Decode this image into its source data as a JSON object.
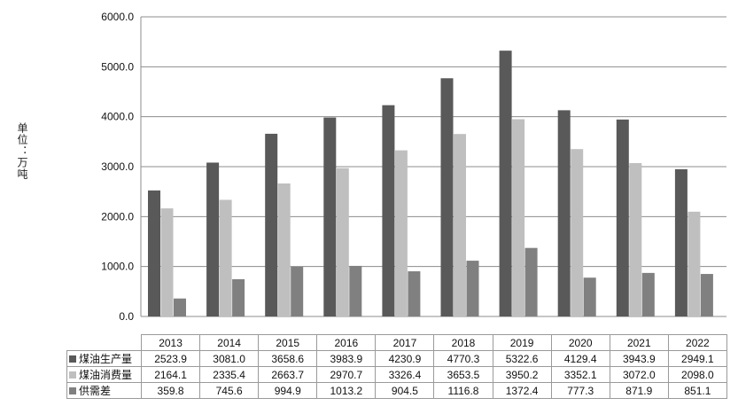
{
  "chart_data": {
    "type": "bar",
    "ylabel": "单位：万吨",
    "ylim": [
      0,
      6000
    ],
    "yticks": [
      "0.0",
      "1000.0",
      "2000.0",
      "3000.0",
      "4000.0",
      "5000.0",
      "6000.0"
    ],
    "grid": true,
    "legend": "data-table",
    "categories": [
      "2013",
      "2014",
      "2015",
      "2016",
      "2017",
      "2018",
      "2019",
      "2020",
      "2021",
      "2022"
    ],
    "series": [
      {
        "name": "煤油生产量",
        "color": "#595959",
        "values": [
          2523.9,
          3081.0,
          3658.6,
          3983.9,
          4230.9,
          4770.3,
          5322.6,
          4129.4,
          3943.9,
          2949.1
        ],
        "labels": [
          "2523.9",
          "3081.0",
          "3658.6",
          "3983.9",
          "4230.9",
          "4770.3",
          "5322.6",
          "4129.4",
          "3943.9",
          "2949.1"
        ]
      },
      {
        "name": "煤油消费量",
        "color": "#bfbfbf",
        "values": [
          2164.1,
          2335.4,
          2663.7,
          2970.7,
          3326.4,
          3653.5,
          3950.2,
          3352.1,
          3072.0,
          2098.0
        ],
        "labels": [
          "2164.1",
          "2335.4",
          "2663.7",
          "2970.7",
          "3326.4",
          "3653.5",
          "3950.2",
          "3352.1",
          "3072.0",
          "2098.0"
        ]
      },
      {
        "name": "供需差",
        "color": "#808080",
        "values": [
          359.8,
          745.6,
          994.9,
          1013.2,
          904.5,
          1116.8,
          1372.4,
          777.3,
          871.9,
          851.1
        ],
        "labels": [
          "359.8",
          "745.6",
          "994.9",
          "1013.2",
          "904.5",
          "1116.8",
          "1372.4",
          "777.3",
          "871.9",
          "851.1"
        ]
      }
    ]
  }
}
